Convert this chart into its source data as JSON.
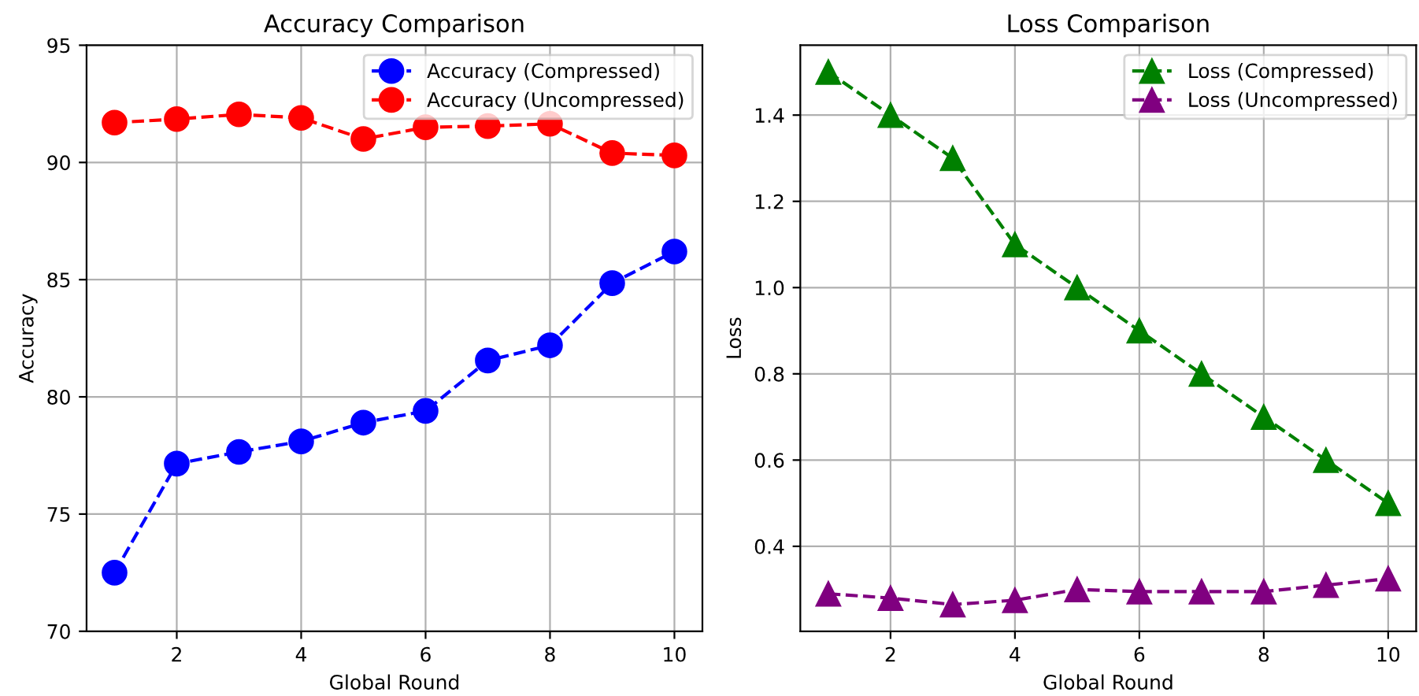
{
  "chart_data": [
    {
      "type": "line",
      "title": "Accuracy Comparison",
      "xlabel": "Global Round",
      "ylabel": "Accuracy",
      "x": [
        1,
        2,
        3,
        4,
        5,
        6,
        7,
        8,
        9,
        10
      ],
      "xlim": [
        0.55,
        10.45
      ],
      "xticks": [
        2,
        4,
        6,
        8,
        10
      ],
      "ylim": [
        70,
        95
      ],
      "yticks": [
        70,
        75,
        80,
        85,
        90,
        95
      ],
      "grid": true,
      "legend": "top right",
      "marker": "circle",
      "line_style": "dashed",
      "series": [
        {
          "name": "Accuracy (Compressed)",
          "color": "#0000ff",
          "values": [
            72.5,
            77.15,
            77.65,
            78.1,
            78.9,
            79.4,
            81.55,
            82.2,
            84.85,
            86.2
          ]
        },
        {
          "name": "Accuracy (Uncompressed)",
          "color": "#ff0000",
          "values": [
            91.7,
            91.85,
            92.05,
            91.9,
            91.0,
            91.5,
            91.55,
            91.65,
            90.4,
            90.3
          ]
        }
      ]
    },
    {
      "type": "line",
      "title": "Loss Comparison",
      "xlabel": "Global Round",
      "ylabel": "Loss",
      "x": [
        1,
        2,
        3,
        4,
        5,
        6,
        7,
        8,
        9,
        10
      ],
      "xlim": [
        0.55,
        10.45
      ],
      "xticks": [
        2,
        4,
        6,
        8,
        10
      ],
      "ylim": [
        0.203,
        1.562
      ],
      "yticks": [
        0.4,
        0.6,
        0.8,
        {
          "value": 1,
          "label": "1.0"
        },
        1.2,
        1.4
      ],
      "grid": true,
      "legend": "top right",
      "marker": "triangle",
      "line_style": "dashed",
      "series": [
        {
          "name": "Loss (Compressed)",
          "color": "#008000",
          "values": [
            1.5,
            1.4,
            1.3,
            1.1,
            1.0,
            0.9,
            0.8,
            0.7,
            0.6,
            0.5
          ]
        },
        {
          "name": "Loss (Uncompressed)",
          "color": "#800080",
          "values": [
            0.29,
            0.28,
            0.265,
            0.275,
            0.3,
            0.295,
            0.295,
            0.295,
            0.31,
            0.325
          ]
        }
      ]
    }
  ]
}
